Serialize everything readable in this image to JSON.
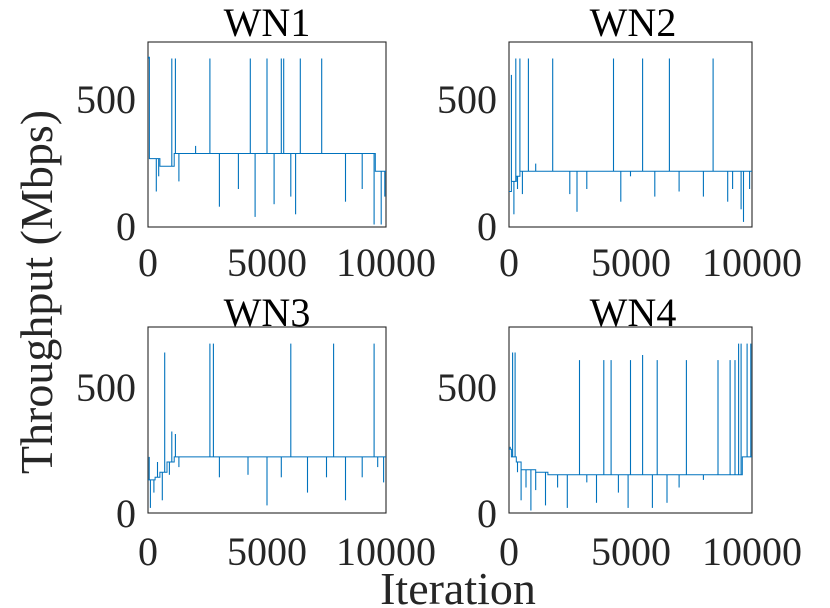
{
  "figure": {
    "ylabel": "Throughput (Mbps)",
    "xlabel": "Iteration",
    "line_color": "#0072bd",
    "axis_color": "#262626"
  },
  "chart_data": [
    {
      "type": "line",
      "title": "WN1",
      "xlim": [
        0,
        10000
      ],
      "ylim": [
        0,
        730
      ],
      "xticks": [
        "0",
        "5000",
        "10000"
      ],
      "yticks": [
        "0",
        "500"
      ],
      "grid": false,
      "baseline": [
        [
          0,
          670
        ],
        [
          60,
          270
        ],
        [
          350,
          270
        ],
        [
          500,
          240
        ],
        [
          1100,
          290
        ],
        [
          9450,
          290
        ],
        [
          9550,
          220
        ],
        [
          10000,
          220
        ]
      ],
      "spikes": [
        [
          30,
          665
        ],
        [
          350,
          140
        ],
        [
          450,
          200
        ],
        [
          1000,
          665
        ],
        [
          1150,
          665
        ],
        [
          1300,
          180
        ],
        [
          2000,
          320
        ],
        [
          2600,
          665
        ],
        [
          3000,
          80
        ],
        [
          3800,
          150
        ],
        [
          4300,
          665
        ],
        [
          4500,
          40
        ],
        [
          5000,
          665
        ],
        [
          5300,
          90
        ],
        [
          5600,
          665
        ],
        [
          5700,
          665
        ],
        [
          6000,
          120
        ],
        [
          6200,
          50
        ],
        [
          6400,
          665
        ],
        [
          7300,
          665
        ],
        [
          8300,
          100
        ],
        [
          9000,
          150
        ],
        [
          9500,
          10
        ],
        [
          9800,
          10
        ],
        [
          9950,
          120
        ]
      ]
    },
    {
      "type": "line",
      "title": "WN2",
      "xlim": [
        0,
        10000
      ],
      "ylim": [
        0,
        730
      ],
      "xticks": [
        "0",
        "5000",
        "10000"
      ],
      "yticks": [
        "0",
        "500"
      ],
      "grid": false,
      "baseline": [
        [
          0,
          140
        ],
        [
          100,
          180
        ],
        [
          300,
          200
        ],
        [
          450,
          220
        ],
        [
          10000,
          220
        ]
      ],
      "spikes": [
        [
          100,
          600
        ],
        [
          200,
          50
        ],
        [
          280,
          665
        ],
        [
          350,
          150
        ],
        [
          450,
          665
        ],
        [
          550,
          130
        ],
        [
          800,
          665
        ],
        [
          1100,
          250
        ],
        [
          1800,
          665
        ],
        [
          2500,
          130
        ],
        [
          2800,
          60
        ],
        [
          3200,
          150
        ],
        [
          4300,
          665
        ],
        [
          4600,
          100
        ],
        [
          5000,
          200
        ],
        [
          5500,
          665
        ],
        [
          6000,
          120
        ],
        [
          6600,
          665
        ],
        [
          7000,
          140
        ],
        [
          8000,
          120
        ],
        [
          8400,
          665
        ],
        [
          9000,
          100
        ],
        [
          9200,
          150
        ],
        [
          9550,
          70
        ],
        [
          9650,
          20
        ],
        [
          9900,
          150
        ]
      ]
    },
    {
      "type": "line",
      "title": "WN3",
      "xlim": [
        0,
        10000
      ],
      "ylim": [
        0,
        730
      ],
      "xticks": [
        "0",
        "5000",
        "10000"
      ],
      "yticks": [
        "0",
        "500"
      ],
      "grid": false,
      "baseline": [
        [
          0,
          130
        ],
        [
          300,
          140
        ],
        [
          500,
          160
        ],
        [
          800,
          200
        ],
        [
          1100,
          220
        ],
        [
          10000,
          220
        ]
      ],
      "spikes": [
        [
          50,
          220
        ],
        [
          100,
          20
        ],
        [
          250,
          80
        ],
        [
          400,
          200
        ],
        [
          600,
          50
        ],
        [
          700,
          630
        ],
        [
          900,
          150
        ],
        [
          1000,
          320
        ],
        [
          1150,
          310
        ],
        [
          1300,
          180
        ],
        [
          2600,
          665
        ],
        [
          2750,
          665
        ],
        [
          3000,
          140
        ],
        [
          4200,
          150
        ],
        [
          5000,
          30
        ],
        [
          5600,
          140
        ],
        [
          6000,
          665
        ],
        [
          6700,
          80
        ],
        [
          7500,
          140
        ],
        [
          7800,
          665
        ],
        [
          8300,
          50
        ],
        [
          9000,
          140
        ],
        [
          9500,
          665
        ],
        [
          9650,
          180
        ],
        [
          9900,
          120
        ]
      ]
    },
    {
      "type": "line",
      "title": "WN4",
      "xlim": [
        0,
        10000
      ],
      "ylim": [
        0,
        730
      ],
      "xticks": [
        "0",
        "5000",
        "10000"
      ],
      "yticks": [
        "0",
        "500"
      ],
      "grid": false,
      "baseline": [
        [
          0,
          250
        ],
        [
          100,
          220
        ],
        [
          300,
          200
        ],
        [
          500,
          170
        ],
        [
          1100,
          160
        ],
        [
          1600,
          150
        ],
        [
          9400,
          150
        ],
        [
          9600,
          220
        ],
        [
          10000,
          220
        ]
      ],
      "spikes": [
        [
          50,
          260
        ],
        [
          150,
          630
        ],
        [
          250,
          630
        ],
        [
          350,
          160
        ],
        [
          500,
          50
        ],
        [
          700,
          100
        ],
        [
          900,
          10
        ],
        [
          1100,
          90
        ],
        [
          1500,
          30
        ],
        [
          2000,
          100
        ],
        [
          2400,
          20
        ],
        [
          2900,
          600
        ],
        [
          3200,
          120
        ],
        [
          3600,
          40
        ],
        [
          3900,
          600
        ],
        [
          4200,
          600
        ],
        [
          4500,
          80
        ],
        [
          4900,
          20
        ],
        [
          5000,
          600
        ],
        [
          5500,
          620
        ],
        [
          5900,
          20
        ],
        [
          6100,
          600
        ],
        [
          6500,
          40
        ],
        [
          7000,
          100
        ],
        [
          7300,
          600
        ],
        [
          8000,
          130
        ],
        [
          8600,
          600
        ],
        [
          9100,
          600
        ],
        [
          9300,
          600
        ],
        [
          9450,
          665
        ],
        [
          9550,
          665
        ],
        [
          9800,
          665
        ],
        [
          9950,
          665
        ]
      ]
    }
  ]
}
